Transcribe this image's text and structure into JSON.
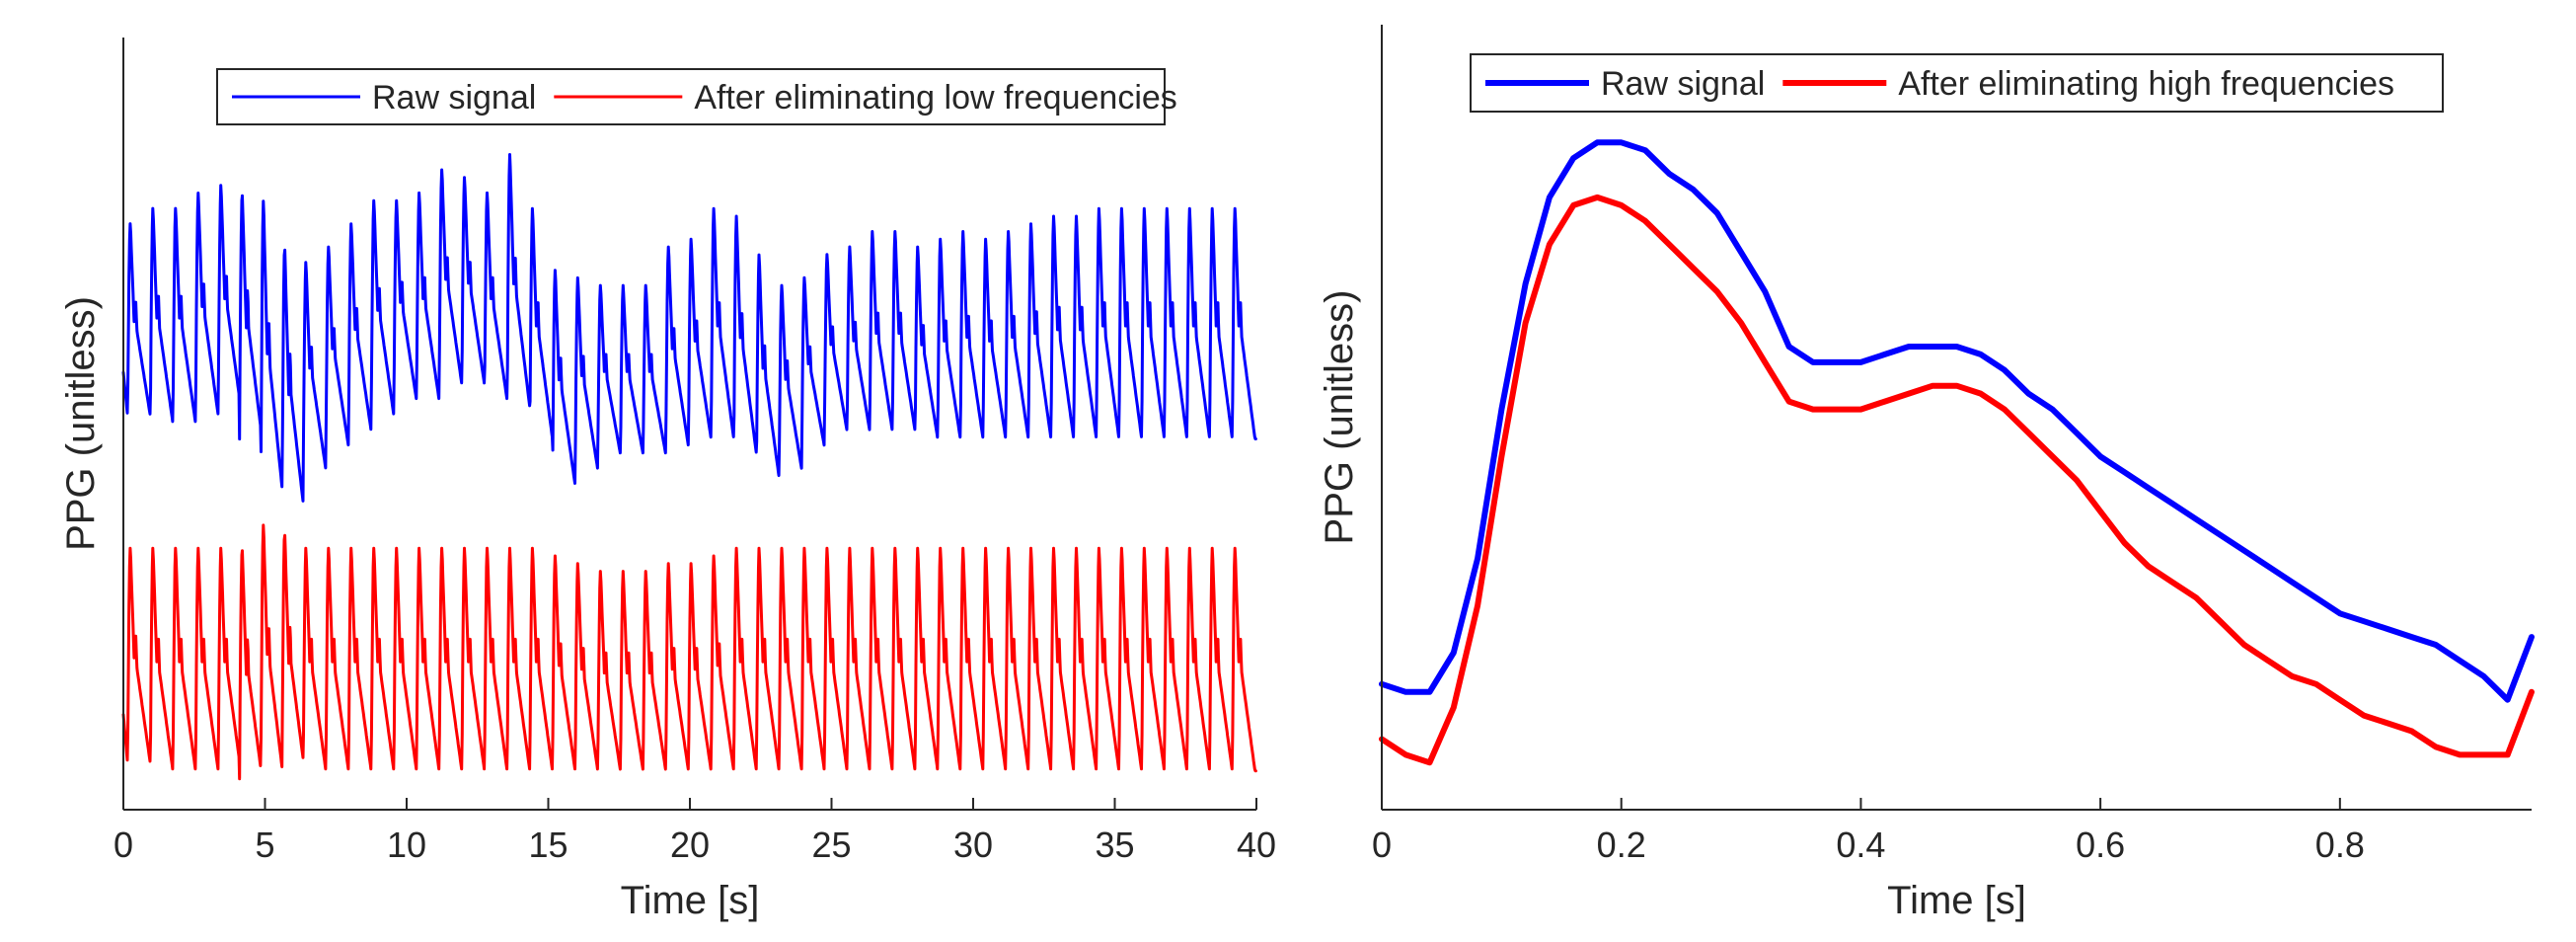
{
  "chart_data": [
    {
      "type": "line",
      "title": "",
      "xlabel": "Time [s]",
      "ylabel": "PPG (unitless)",
      "xlim": [
        0,
        40
      ],
      "ylim": [
        0,
        1
      ],
      "y_ticks_shown": false,
      "xticks": [
        0,
        5,
        10,
        15,
        20,
        25,
        30,
        35,
        40
      ],
      "grid": false,
      "legend_position": "top-center",
      "series": [
        {
          "name": "Raw signal",
          "color": "#0000ff",
          "linewidth": "thin",
          "approx_beats": 40,
          "beat_times": [
            0.15,
            0.95,
            1.75,
            2.55,
            3.35,
            4.1,
            4.85,
            5.6,
            6.35,
            7.15,
            7.95,
            8.75,
            9.55,
            10.35,
            11.15,
            11.95,
            12.75,
            13.55,
            14.35,
            15.15,
            15.95,
            16.75,
            17.55,
            18.35,
            19.15,
            19.95,
            20.75,
            21.55,
            22.35,
            23.15,
            23.95,
            24.75,
            25.55,
            26.35,
            27.15,
            27.95,
            28.75,
            29.55,
            30.35,
            31.15,
            31.95,
            32.75,
            33.55,
            34.35,
            35.15,
            35.95,
            36.75,
            37.55,
            38.35,
            39.15
          ],
          "peak_levels": [
            0.76,
            0.78,
            0.78,
            0.8,
            0.81,
            0.8,
            0.79,
            0.73,
            0.71,
            0.73,
            0.76,
            0.79,
            0.79,
            0.8,
            0.83,
            0.82,
            0.8,
            0.85,
            0.78,
            0.7,
            0.69,
            0.68,
            0.68,
            0.68,
            0.73,
            0.74,
            0.78,
            0.77,
            0.72,
            0.68,
            0.69,
            0.72,
            0.73,
            0.75,
            0.75,
            0.73,
            0.74,
            0.75,
            0.74,
            0.75,
            0.76,
            0.77,
            0.77,
            0.78,
            0.78,
            0.78,
            0.78,
            0.78,
            0.78,
            0.78
          ],
          "trough_levels": [
            0.51,
            0.5,
            0.5,
            0.51,
            0.52,
            0.48,
            0.4,
            0.38,
            0.44,
            0.47,
            0.49,
            0.51,
            0.53,
            0.53,
            0.55,
            0.55,
            0.53,
            0.52,
            0.48,
            0.42,
            0.44,
            0.46,
            0.46,
            0.46,
            0.47,
            0.48,
            0.48,
            0.46,
            0.43,
            0.44,
            0.47,
            0.49,
            0.49,
            0.49,
            0.49,
            0.48,
            0.48,
            0.48,
            0.48,
            0.48,
            0.48,
            0.48,
            0.48,
            0.48,
            0.48,
            0.48,
            0.48,
            0.48,
            0.48,
            0.48
          ]
        },
        {
          "name": "After eliminating low frequencies",
          "color": "#ff0000",
          "linewidth": "thin",
          "beat_times": [
            0.15,
            0.95,
            1.75,
            2.55,
            3.35,
            4.1,
            4.85,
            5.6,
            6.35,
            7.15,
            7.95,
            8.75,
            9.55,
            10.35,
            11.15,
            11.95,
            12.75,
            13.55,
            14.35,
            15.15,
            15.95,
            16.75,
            17.55,
            18.35,
            19.15,
            19.95,
            20.75,
            21.55,
            22.35,
            23.15,
            23.95,
            24.75,
            25.55,
            26.35,
            27.15,
            27.95,
            28.75,
            29.55,
            30.35,
            31.15,
            31.95,
            32.75,
            33.55,
            34.35,
            35.15,
            35.95,
            36.75,
            37.55,
            38.35,
            39.15
          ],
          "peak_levels": [
            0.34,
            0.34,
            0.34,
            0.34,
            0.34,
            0.34,
            0.37,
            0.36,
            0.34,
            0.34,
            0.34,
            0.34,
            0.34,
            0.34,
            0.34,
            0.34,
            0.34,
            0.34,
            0.34,
            0.33,
            0.32,
            0.31,
            0.31,
            0.31,
            0.32,
            0.32,
            0.33,
            0.34,
            0.34,
            0.34,
            0.34,
            0.34,
            0.34,
            0.34,
            0.34,
            0.34,
            0.34,
            0.34,
            0.34,
            0.34,
            0.34,
            0.34,
            0.34,
            0.34,
            0.34,
            0.34,
            0.34,
            0.34,
            0.34,
            0.34
          ],
          "trough_levels": [
            0.06,
            0.05,
            0.05,
            0.05,
            0.05,
            0.04,
            0.04,
            0.05,
            0.05,
            0.05,
            0.05,
            0.05,
            0.05,
            0.05,
            0.05,
            0.05,
            0.05,
            0.05,
            0.05,
            0.05,
            0.05,
            0.05,
            0.05,
            0.05,
            0.05,
            0.05,
            0.05,
            0.05,
            0.05,
            0.05,
            0.05,
            0.05,
            0.05,
            0.05,
            0.05,
            0.05,
            0.05,
            0.05,
            0.05,
            0.05,
            0.05,
            0.05,
            0.05,
            0.05,
            0.05,
            0.05,
            0.05,
            0.05,
            0.05,
            0.05
          ]
        }
      ]
    },
    {
      "type": "line",
      "title": "",
      "xlabel": "Time [s]",
      "ylabel": "PPG (unitless)",
      "xlim": [
        0,
        0.96
      ],
      "ylim": [
        0,
        1
      ],
      "y_ticks_shown": false,
      "xticks": [
        0,
        0.2,
        0.4,
        0.6,
        0.8
      ],
      "grid": false,
      "legend_position": "top-center",
      "series": [
        {
          "name": "Raw signal",
          "color": "#0000ff",
          "linewidth": "thick",
          "x": [
            0,
            0.02,
            0.04,
            0.06,
            0.08,
            0.1,
            0.12,
            0.14,
            0.16,
            0.18,
            0.2,
            0.22,
            0.24,
            0.26,
            0.28,
            0.3,
            0.32,
            0.34,
            0.36,
            0.38,
            0.4,
            0.42,
            0.44,
            0.46,
            0.48,
            0.5,
            0.52,
            0.54,
            0.56,
            0.58,
            0.6,
            0.62,
            0.64,
            0.66,
            0.68,
            0.7,
            0.72,
            0.74,
            0.76,
            0.78,
            0.8,
            0.82,
            0.84,
            0.86,
            0.88,
            0.9,
            0.92,
            0.94,
            0.96
          ],
          "y": [
            0.16,
            0.15,
            0.15,
            0.2,
            0.32,
            0.51,
            0.67,
            0.78,
            0.83,
            0.85,
            0.85,
            0.84,
            0.81,
            0.79,
            0.76,
            0.71,
            0.66,
            0.59,
            0.57,
            0.57,
            0.57,
            0.58,
            0.59,
            0.59,
            0.59,
            0.58,
            0.56,
            0.53,
            0.51,
            0.48,
            0.45,
            0.43,
            0.41,
            0.39,
            0.37,
            0.35,
            0.33,
            0.31,
            0.29,
            0.27,
            0.25,
            0.24,
            0.23,
            0.22,
            0.21,
            0.19,
            0.17,
            0.14,
            0.22
          ]
        },
        {
          "name": "After eliminating high frequencies",
          "color": "#ff0000",
          "linewidth": "thick",
          "x": [
            0,
            0.02,
            0.04,
            0.06,
            0.08,
            0.1,
            0.12,
            0.14,
            0.16,
            0.18,
            0.2,
            0.22,
            0.24,
            0.26,
            0.28,
            0.3,
            0.32,
            0.34,
            0.36,
            0.38,
            0.4,
            0.42,
            0.44,
            0.46,
            0.48,
            0.5,
            0.52,
            0.54,
            0.56,
            0.58,
            0.6,
            0.62,
            0.64,
            0.66,
            0.68,
            0.7,
            0.72,
            0.74,
            0.76,
            0.78,
            0.8,
            0.82,
            0.84,
            0.86,
            0.88,
            0.9,
            0.92,
            0.94,
            0.96
          ],
          "y": [
            0.09,
            0.07,
            0.06,
            0.13,
            0.26,
            0.45,
            0.62,
            0.72,
            0.77,
            0.78,
            0.77,
            0.75,
            0.72,
            0.69,
            0.66,
            0.62,
            0.57,
            0.52,
            0.51,
            0.51,
            0.51,
            0.52,
            0.53,
            0.54,
            0.54,
            0.53,
            0.51,
            0.48,
            0.45,
            0.42,
            0.38,
            0.34,
            0.31,
            0.29,
            0.27,
            0.24,
            0.21,
            0.19,
            0.17,
            0.16,
            0.14,
            0.12,
            0.11,
            0.1,
            0.08,
            0.07,
            0.07,
            0.07,
            0.15
          ]
        }
      ]
    }
  ]
}
